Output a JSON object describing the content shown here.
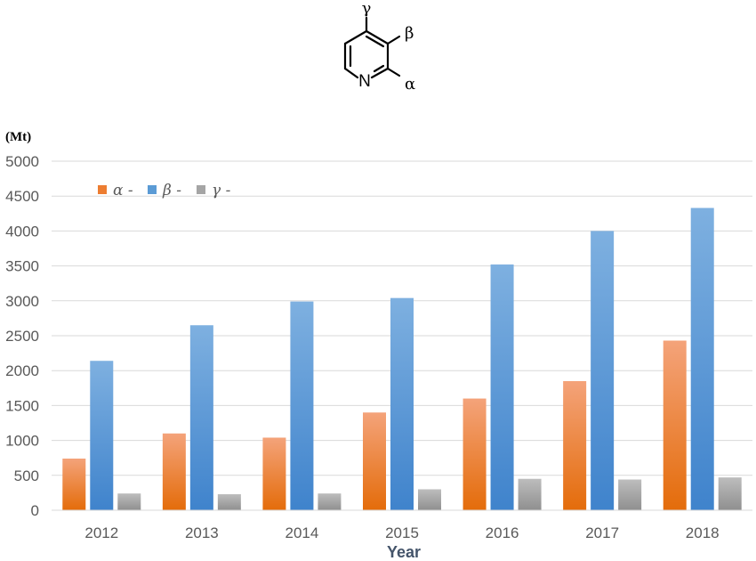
{
  "molecule": {
    "atom_n": "N",
    "gamma": "γ",
    "beta": "β",
    "alpha": "α"
  },
  "chart_data": {
    "type": "bar",
    "unit_label": "(Mt)",
    "xlabel": "Year",
    "ylabel": "",
    "ylim": [
      0,
      5000
    ],
    "yticks": [
      0,
      500,
      1000,
      1500,
      2000,
      2500,
      3000,
      3500,
      4000,
      4500,
      5000
    ],
    "grid": true,
    "legend_position": "top-left",
    "categories": [
      "2012",
      "2013",
      "2014",
      "2015",
      "2016",
      "2017",
      "2018"
    ],
    "series": [
      {
        "name": "α -",
        "color": "#ed7d31",
        "values": [
          740,
          1100,
          1040,
          1400,
          1600,
          1850,
          2430
        ]
      },
      {
        "name": "β -",
        "color": "#5b9bd5",
        "values": [
          2140,
          2650,
          2990,
          3040,
          3520,
          4000,
          4330
        ]
      },
      {
        "name": "γ -",
        "color": "#a5a5a5",
        "values": [
          240,
          230,
          240,
          300,
          450,
          440,
          470
        ]
      }
    ]
  }
}
